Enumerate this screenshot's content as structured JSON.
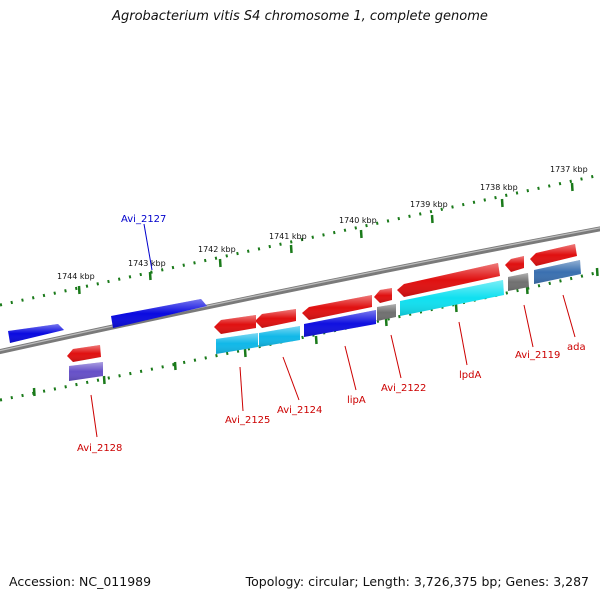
{
  "title": "Agrobacterium vitis S4 chromosome 1, complete genome",
  "footer": {
    "accession": "Accession: NC_011989",
    "summary": "Topology: circular; Length: 3,726,375 bp; Genes: 3,287"
  },
  "colors": {
    "backbone": "#7a7a7a",
    "tick": "#1a7a1a",
    "forward_gene": "#0a0ae0",
    "reverse_gene": "#e01010",
    "cds_cyan": "#10d0f0",
    "cds_blue": "#1010e0",
    "cds_gray": "#707070",
    "cds_steel": "#3a70b0",
    "cds_purple": "#6650c8",
    "label_red": "#cc0000",
    "label_blue": "#0000cc"
  },
  "scale": {
    "unit": "kbp",
    "ticks": [
      {
        "kbp": 1737,
        "label": "1737 kbp"
      },
      {
        "kbp": 1738,
        "label": "1738 kbp"
      },
      {
        "kbp": 1739,
        "label": "1739 kbp"
      },
      {
        "kbp": 1740,
        "label": "1740 kbp"
      },
      {
        "kbp": 1741,
        "label": "1741 kbp"
      },
      {
        "kbp": 1742,
        "label": "1742 kbp"
      },
      {
        "kbp": 1743,
        "label": "1743 kbp"
      },
      {
        "kbp": 1744,
        "label": "1744 kbp"
      }
    ]
  },
  "gene_labels": [
    {
      "id": "Avi_2127",
      "label": "Avi_2127",
      "strand": "forward"
    },
    {
      "id": "Avi_2128",
      "label": "Avi_2128",
      "strand": "reverse"
    },
    {
      "id": "Avi_2125",
      "label": "Avi_2125",
      "strand": "reverse"
    },
    {
      "id": "Avi_2124",
      "label": "Avi_2124",
      "strand": "reverse"
    },
    {
      "id": "lipA",
      "label": "lipA",
      "strand": "reverse"
    },
    {
      "id": "Avi_2122",
      "label": "Avi_2122",
      "strand": "reverse"
    },
    {
      "id": "lpdA",
      "label": "lpdA",
      "strand": "reverse"
    },
    {
      "id": "Avi_2119",
      "label": "Avi_2119",
      "strand": "reverse"
    },
    {
      "id": "ada",
      "label": "ada",
      "strand": "reverse"
    }
  ]
}
